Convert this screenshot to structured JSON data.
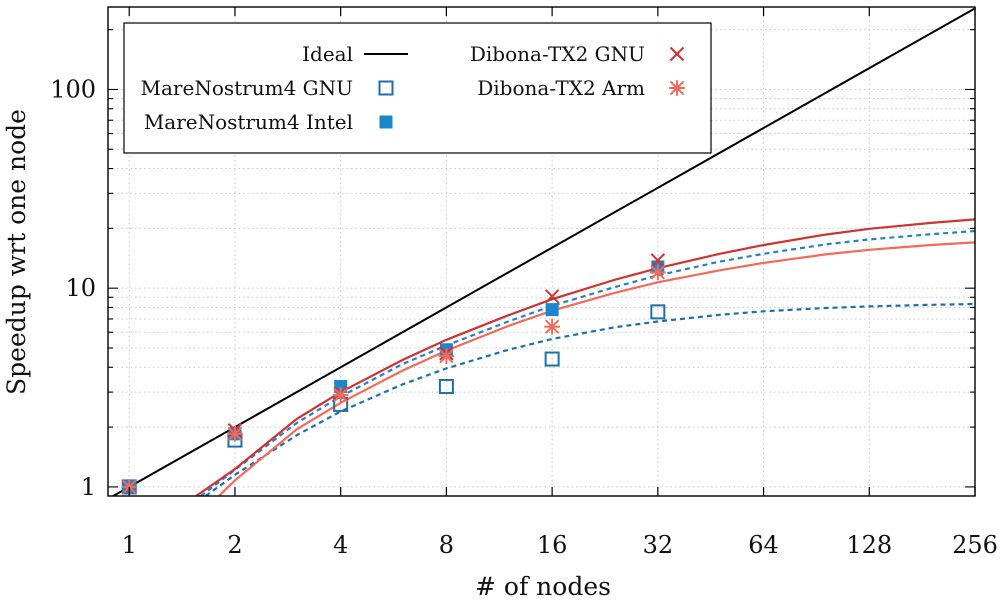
{
  "chart_data": {
    "type": "scatter",
    "title": "",
    "xlabel": "# of nodes",
    "ylabel": "Speedup wrt one node",
    "xscale": "log2",
    "yscale": "log10",
    "xlim": [
      0.87,
      256
    ],
    "ylim": [
      0.9,
      260
    ],
    "x_ticks": [
      1,
      2,
      4,
      8,
      16,
      32,
      64,
      128,
      256
    ],
    "x_tick_labels": [
      "1",
      "2",
      "4",
      "8",
      "16",
      "32",
      "64",
      "128",
      "256"
    ],
    "y_ticks": [
      1,
      10,
      100
    ],
    "y_tick_labels": [
      "1",
      "10",
      "100"
    ],
    "grid": true,
    "legend_position": "top-left",
    "ideal": {
      "name": "Ideal",
      "color": "#000000",
      "x": [
        0.87,
        256
      ],
      "y": [
        0.87,
        256
      ]
    },
    "series": [
      {
        "name": "MareNostrum4 GNU",
        "marker": "open-square",
        "color": "#1f6fa6",
        "fit_style": "dashed",
        "fit_color": "#1f6fa6",
        "x": [
          1,
          2,
          4,
          8,
          16,
          32
        ],
        "y": [
          1.0,
          1.72,
          2.6,
          3.2,
          4.4,
          7.6
        ],
        "fit": {
          "x": [
            1.65,
            2,
            3,
            4,
            6,
            8,
            12,
            16,
            24,
            32,
            48,
            64,
            96,
            128,
            192,
            256
          ],
          "y": [
            0.9,
            1.15,
            1.82,
            2.4,
            3.28,
            3.95,
            4.9,
            5.55,
            6.35,
            6.8,
            7.35,
            7.65,
            7.95,
            8.1,
            8.25,
            8.33
          ]
        }
      },
      {
        "name": "MareNostrum4 Intel",
        "marker": "filled-square",
        "color": "#1a86cc",
        "fit_style": "dashed",
        "fit_color": "#2a7fc1",
        "x": [
          1,
          2,
          4,
          8,
          16,
          32
        ],
        "y": [
          1.0,
          1.85,
          3.2,
          4.9,
          7.8,
          12.8
        ],
        "fit": {
          "x": [
            1.6,
            2,
            3,
            4,
            6,
            8,
            12,
            16,
            24,
            32,
            48,
            64,
            96,
            128,
            192,
            256
          ],
          "y": [
            0.9,
            1.22,
            2.1,
            2.85,
            4.15,
            5.15,
            6.8,
            8.15,
            10.1,
            11.6,
            13.6,
            14.9,
            16.6,
            17.6,
            18.7,
            19.4
          ]
        }
      },
      {
        "name": "Dibona-TX2 GNU",
        "marker": "x",
        "color": "#cc3333",
        "fit_style": "solid",
        "fit_color": "#cc3333",
        "x": [
          1,
          2,
          4,
          8,
          16,
          32
        ],
        "y": [
          1.0,
          1.93,
          2.95,
          4.7,
          9.1,
          13.8
        ],
        "fit": {
          "x": [
            1.55,
            2,
            3,
            4,
            6,
            8,
            12,
            16,
            24,
            32,
            48,
            64,
            96,
            128,
            192,
            256
          ],
          "y": [
            0.9,
            1.23,
            2.2,
            3.0,
            4.35,
            5.5,
            7.3,
            8.8,
            11.0,
            12.6,
            14.9,
            16.5,
            18.6,
            19.9,
            21.3,
            22.2
          ]
        }
      },
      {
        "name": "Dibona-TX2 Arm",
        "marker": "asterisk",
        "color": "#f26a5c",
        "fit_style": "solid",
        "fit_color": "#f26a5c",
        "x": [
          1,
          2,
          4,
          8,
          16,
          32
        ],
        "y": [
          1.0,
          1.85,
          2.9,
          4.55,
          6.4,
          12.0
        ],
        "fit": {
          "x": [
            1.8,
            2,
            3,
            4,
            6,
            8,
            12,
            16,
            24,
            32,
            48,
            64,
            96,
            128,
            192,
            256
          ],
          "y": [
            0.9,
            1.08,
            1.95,
            2.65,
            3.85,
            4.85,
            6.45,
            7.7,
            9.45,
            10.7,
            12.3,
            13.4,
            14.8,
            15.6,
            16.5,
            17.0
          ]
        }
      }
    ]
  }
}
